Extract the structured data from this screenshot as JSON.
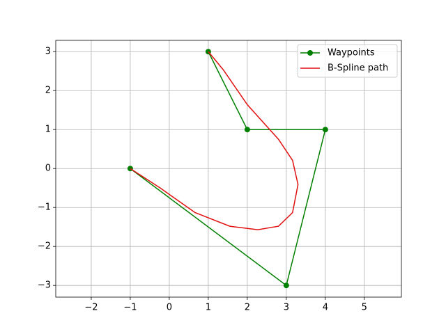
{
  "chart_data": {
    "type": "line",
    "xlim": [
      -2.91,
      5.95
    ],
    "ylim": [
      -3.3,
      3.29
    ],
    "xticks": [
      {
        "value": -2,
        "label": "−2"
      },
      {
        "value": -1,
        "label": "−1"
      },
      0,
      1,
      2,
      3,
      4,
      5
    ],
    "yticks": [
      {
        "value": -3,
        "label": "−3"
      },
      {
        "value": -2,
        "label": "−2"
      },
      {
        "value": -1,
        "label": "−1"
      },
      0,
      1,
      2,
      3
    ],
    "grid": true,
    "legend": "upper right",
    "series": [
      {
        "name": "Waypoints",
        "color": "#008000",
        "marker": true,
        "x": [
          1,
          2,
          4,
          3,
          -1
        ],
        "values": [
          3,
          1,
          1,
          -3,
          0
        ]
      },
      {
        "name": "B-Spline path",
        "color": "#e01010",
        "marker": false,
        "x": [
          1,
          1.38,
          2,
          2.8,
          3.16,
          3.3,
          3.16,
          2.8,
          2.27,
          1.55,
          0.66,
          -0.23,
          -1
        ],
        "values": [
          3,
          2.54,
          1.64,
          0.75,
          0.21,
          -0.41,
          -1.13,
          -1.48,
          -1.57,
          -1.48,
          -1.13,
          -0.5,
          0
        ]
      }
    ]
  }
}
